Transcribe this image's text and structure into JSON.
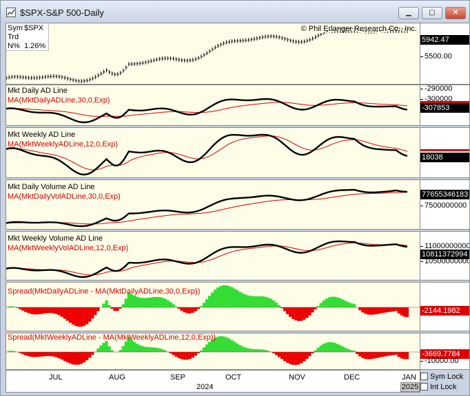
{
  "window": {
    "title": "$SPX-S&P 500-Daily",
    "icons": [
      "app-chart-icon",
      "minimize-icon",
      "maximize-icon",
      "close-icon"
    ]
  },
  "price_panel": {
    "sym_label": "Sym",
    "sym_value": "$SPX",
    "trd_label": "Trd",
    "n_label": "N%",
    "n_value": "1.26%",
    "copyright": "© Phil Erlanger Research Co., Inc.",
    "last_value": "5942.47",
    "ticks": [
      "5500.00"
    ]
  },
  "panels": [
    {
      "title": "Mkt Daily AD Line",
      "ma_label": "MA(MktDailyADLine,30,0,Exp)",
      "ticks": [
        "-290000",
        "-300000"
      ],
      "last_value": "-307853"
    },
    {
      "title": "Mkt Weekly AD Line",
      "ma_label": "MA(MktWeeklyADLine,12,0,Exp)",
      "ticks": [],
      "last_value": "18038"
    },
    {
      "title": "Mkt Daily Volume AD Line",
      "ma_label": "MA(MktDailyVolADLine,30,0,Exp)",
      "ticks": [
        "7500000000"
      ],
      "last_value": "77655346183"
    },
    {
      "title": "Mkt Weekly Volume AD Line",
      "ma_label": "MA(MktWeeklyVolADLine,12,0,Exp)",
      "ticks": [
        "11000000000",
        "10500000000"
      ],
      "last_value": "10811372994"
    },
    {
      "title": "",
      "ma_label": "Spread(MktDailyADLine - MA(MktDailyADLine,30,0,Exp))",
      "ticks": [],
      "last_value": "-2144.1982"
    },
    {
      "title": "",
      "ma_label": "Spread(MktWeeklyADLine - MA(MktWeeklyADLine,12,0,Exp))",
      "ticks": [
        "-10000.00"
      ],
      "last_value": "-3669.7784"
    }
  ],
  "time_axis": {
    "months": [
      "JUL",
      "AUG",
      "SEP",
      "OCT",
      "NOV",
      "DEC",
      "JAN"
    ],
    "year": "2024",
    "corner_year": "2025"
  },
  "controls": {
    "sym_lock": "Sym Lock",
    "int_lock": "Int Lock"
  },
  "colors": {
    "panel_bg": "#fdfde8",
    "line": "#000000",
    "ma_line": "#d40000",
    "spread_pos": "#33dd33",
    "spread_neg": "#ee0000"
  }
}
